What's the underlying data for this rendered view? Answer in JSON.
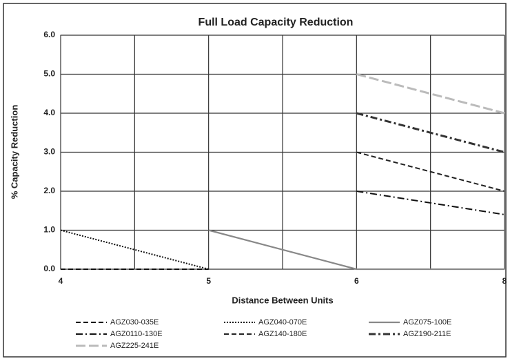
{
  "chart_data": {
    "type": "line",
    "title": "Full Load Capacity Reduction",
    "x_label": "Distance Between Units",
    "y_label": "% Capacity Reduction",
    "categories": [
      "4",
      "5",
      "6",
      "8"
    ],
    "ylim": [
      0,
      6
    ],
    "yticks": [
      {
        "value": 0,
        "label": "0.0"
      },
      {
        "value": 1,
        "label": "1.0"
      },
      {
        "value": 2,
        "label": "2.0"
      },
      {
        "value": 3,
        "label": "3.0"
      },
      {
        "value": 4,
        "label": "4.0"
      },
      {
        "value": 5,
        "label": "5.0"
      },
      {
        "value": 6,
        "label": "6.0"
      }
    ],
    "grid": true,
    "series": [
      {
        "name": "AGZ030-035E",
        "color": "#111111",
        "style": "dashed",
        "values": [
          0,
          0,
          null,
          null
        ]
      },
      {
        "name": "AGZ040-070E",
        "color": "#111111",
        "style": "dotted",
        "values": [
          1,
          0,
          null,
          null
        ]
      },
      {
        "name": "AGZ075-100E",
        "color": "#888888",
        "style": "solid",
        "values": [
          null,
          1,
          0,
          0
        ]
      },
      {
        "name": "AGZ0110-130E",
        "color": "#111111",
        "style": "dashdot",
        "values": [
          null,
          null,
          2,
          1.4
        ]
      },
      {
        "name": "AGZ140-180E",
        "color": "#222222",
        "style": "dashed",
        "values": [
          null,
          null,
          3,
          2
        ]
      },
      {
        "name": "AGZ190-211E",
        "color": "#333333",
        "style": "dashdot-heavy",
        "values": [
          null,
          null,
          4,
          3
        ]
      },
      {
        "name": "AGZ225-241E",
        "color": "#bbbbbb",
        "style": "longdash",
        "values": [
          null,
          null,
          5,
          4
        ]
      }
    ]
  }
}
